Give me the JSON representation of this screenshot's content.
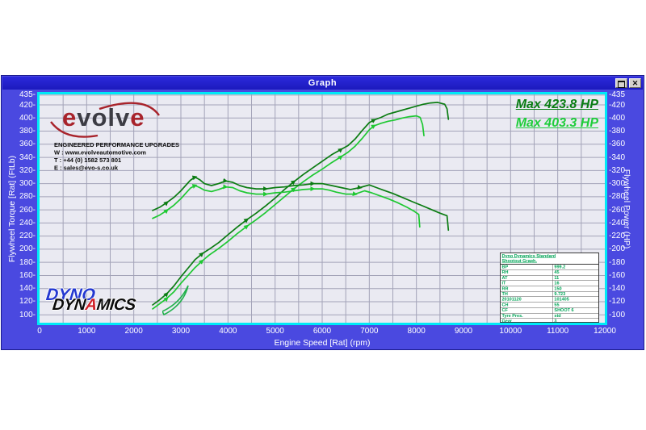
{
  "window": {
    "title": "Graph",
    "restore_icon": "restore",
    "close_icon": "✕"
  },
  "annotations": {
    "max1": "Max 423.8 HP",
    "max2": "Max 403.3 HP"
  },
  "branding": {
    "evolve": {
      "e1": "e",
      "mid": "volv",
      "e2": "e",
      "contact_lines": [
        "ENGINEERED PERFORMANCE UPGRADES",
        "W : www.evolveautomotive.com",
        "T : +44 (0) 1582 573 801",
        "E : sales@evo-s.co.uk"
      ]
    },
    "dyno": {
      "word1": "DYNO",
      "word2a": "DYN",
      "word2b": "A",
      "word2c": "MICS"
    }
  },
  "info_table": {
    "header_line1": "Dyno Dynamics Standard",
    "header_line2": "Shootout Graph.",
    "rows": [
      [
        "BP",
        "999.2"
      ],
      [
        "RH",
        "45"
      ],
      [
        "AT",
        "11"
      ],
      [
        "IT",
        "16"
      ],
      [
        "RR",
        "150"
      ],
      [
        "TH",
        "9.723"
      ],
      [
        "20101120",
        "101405"
      ],
      [
        "CH",
        "55"
      ],
      [
        "CF",
        "SHOOT 6"
      ],
      [
        "Tyre Pres.",
        "std"
      ],
      [
        "Gear",
        "3"
      ]
    ]
  },
  "colors": {
    "window_body": "#4a49e0",
    "titlebar": "#2321cb",
    "plot_border": "#00e9f7",
    "plot_bg": "#eaeaf2",
    "grid": "#a3a3b8",
    "run1_green": "#0b7c12",
    "run2_green": "#1ec832",
    "table_green": "#00a356",
    "evolve_red": "#a8232b"
  },
  "chart_data": {
    "type": "line",
    "title": "Graph",
    "xlabel": "Engine Speed [Rat] (rpm)",
    "ylabel_left": "Flywheel Torque [Rat] (FtLb)",
    "ylabel_right": "Flywheel Power (HP)",
    "xlim": [
      0,
      12000
    ],
    "ylim": [
      88,
      436
    ],
    "x_ticks": [
      0,
      1000,
      2000,
      3000,
      4000,
      5000,
      6000,
      7000,
      8000,
      9000,
      10000,
      11000,
      12000
    ],
    "y_ticks": [
      100,
      120,
      140,
      160,
      180,
      200,
      220,
      240,
      260,
      280,
      300,
      320,
      340,
      360,
      380,
      400,
      420,
      435
    ],
    "x_grid_step": 500,
    "grid": true,
    "legend": "none",
    "series": [
      {
        "name": "power-run-1",
        "axis": "right",
        "max_label": "Max 423.8 HP",
        "color": "#0b7c12",
        "points": [
          [
            2400,
            115
          ],
          [
            2550,
            123
          ],
          [
            2700,
            132
          ],
          [
            2850,
            144
          ],
          [
            3000,
            158
          ],
          [
            3150,
            171
          ],
          [
            3300,
            184
          ],
          [
            3450,
            193
          ],
          [
            3600,
            200
          ],
          [
            3800,
            210
          ],
          [
            4000,
            222
          ],
          [
            4200,
            234
          ],
          [
            4400,
            245
          ],
          [
            4600,
            255
          ],
          [
            4800,
            266
          ],
          [
            5000,
            278
          ],
          [
            5200,
            291
          ],
          [
            5400,
            303
          ],
          [
            5600,
            314
          ],
          [
            5800,
            324
          ],
          [
            6000,
            334
          ],
          [
            6200,
            344
          ],
          [
            6400,
            352
          ],
          [
            6550,
            358
          ],
          [
            6700,
            368
          ],
          [
            6850,
            381
          ],
          [
            7000,
            393
          ],
          [
            7100,
            397
          ],
          [
            7250,
            401
          ],
          [
            7400,
            406
          ],
          [
            7550,
            409
          ],
          [
            7700,
            412
          ],
          [
            7850,
            415
          ],
          [
            8000,
            418
          ],
          [
            8150,
            421
          ],
          [
            8300,
            423
          ],
          [
            8450,
            423.8
          ],
          [
            8600,
            421
          ],
          [
            8650,
            414
          ],
          [
            8680,
            398
          ]
        ]
      },
      {
        "name": "power-run-2",
        "axis": "right",
        "max_label": "Max 403.3 HP",
        "color": "#1ec832",
        "points": [
          [
            2400,
            109
          ],
          [
            2550,
            117
          ],
          [
            2700,
            125
          ],
          [
            2850,
            135
          ],
          [
            3000,
            148
          ],
          [
            3150,
            160
          ],
          [
            3300,
            172
          ],
          [
            3450,
            182
          ],
          [
            3600,
            191
          ],
          [
            3800,
            201
          ],
          [
            4000,
            212
          ],
          [
            4200,
            224
          ],
          [
            4400,
            235
          ],
          [
            4600,
            245
          ],
          [
            4800,
            256
          ],
          [
            5000,
            268
          ],
          [
            5200,
            280
          ],
          [
            5400,
            292
          ],
          [
            5600,
            303
          ],
          [
            5800,
            313
          ],
          [
            6000,
            322
          ],
          [
            6200,
            332
          ],
          [
            6400,
            341
          ],
          [
            6550,
            348
          ],
          [
            6700,
            357
          ],
          [
            6850,
            369
          ],
          [
            7000,
            382
          ],
          [
            7100,
            388
          ],
          [
            7250,
            392
          ],
          [
            7400,
            395
          ],
          [
            7550,
            397
          ],
          [
            7700,
            400
          ],
          [
            7850,
            402
          ],
          [
            8000,
            403.3
          ],
          [
            8080,
            401
          ],
          [
            8130,
            390
          ],
          [
            8160,
            373
          ]
        ]
      },
      {
        "name": "torque-run-1",
        "axis": "left",
        "color": "#0b7c12",
        "points": [
          [
            2400,
            259
          ],
          [
            2550,
            264
          ],
          [
            2700,
            271
          ],
          [
            2850,
            279
          ],
          [
            3000,
            289
          ],
          [
            3100,
            297
          ],
          [
            3200,
            305
          ],
          [
            3300,
            310
          ],
          [
            3400,
            306
          ],
          [
            3500,
            300
          ],
          [
            3650,
            297
          ],
          [
            3800,
            300
          ],
          [
            3950,
            304
          ],
          [
            4100,
            302
          ],
          [
            4250,
            297
          ],
          [
            4400,
            294
          ],
          [
            4600,
            292
          ],
          [
            4800,
            292
          ],
          [
            5000,
            294
          ],
          [
            5200,
            295
          ],
          [
            5400,
            297
          ],
          [
            5600,
            298
          ],
          [
            5800,
            300
          ],
          [
            6000,
            300
          ],
          [
            6200,
            297
          ],
          [
            6400,
            294
          ],
          [
            6600,
            291
          ],
          [
            6800,
            294
          ],
          [
            7000,
            298
          ],
          [
            7150,
            294
          ],
          [
            7300,
            290
          ],
          [
            7500,
            285
          ],
          [
            7700,
            279
          ],
          [
            7900,
            273
          ],
          [
            8100,
            267
          ],
          [
            8300,
            261
          ],
          [
            8500,
            255
          ],
          [
            8650,
            251
          ],
          [
            8680,
            229
          ]
        ]
      },
      {
        "name": "torque-run-2",
        "axis": "left",
        "color": "#1ec832",
        "points": [
          [
            2400,
            247
          ],
          [
            2550,
            252
          ],
          [
            2700,
            259
          ],
          [
            2850,
            267
          ],
          [
            3000,
            277
          ],
          [
            3100,
            285
          ],
          [
            3200,
            293
          ],
          [
            3300,
            297
          ],
          [
            3400,
            294
          ],
          [
            3500,
            290
          ],
          [
            3650,
            288
          ],
          [
            3800,
            291
          ],
          [
            3950,
            295
          ],
          [
            4100,
            294
          ],
          [
            4250,
            289
          ],
          [
            4400,
            286
          ],
          [
            4600,
            284
          ],
          [
            4800,
            284
          ],
          [
            5000,
            286
          ],
          [
            5200,
            287
          ],
          [
            5400,
            289
          ],
          [
            5600,
            291
          ],
          [
            5800,
            292
          ],
          [
            6000,
            292
          ],
          [
            6150,
            290
          ],
          [
            6300,
            287
          ],
          [
            6500,
            284
          ],
          [
            6700,
            284
          ],
          [
            6900,
            289
          ],
          [
            7050,
            286
          ],
          [
            7200,
            282
          ],
          [
            7400,
            277
          ],
          [
            7600,
            271
          ],
          [
            7800,
            264
          ],
          [
            7950,
            258
          ],
          [
            8050,
            253
          ],
          [
            8070,
            234
          ]
        ]
      }
    ]
  }
}
